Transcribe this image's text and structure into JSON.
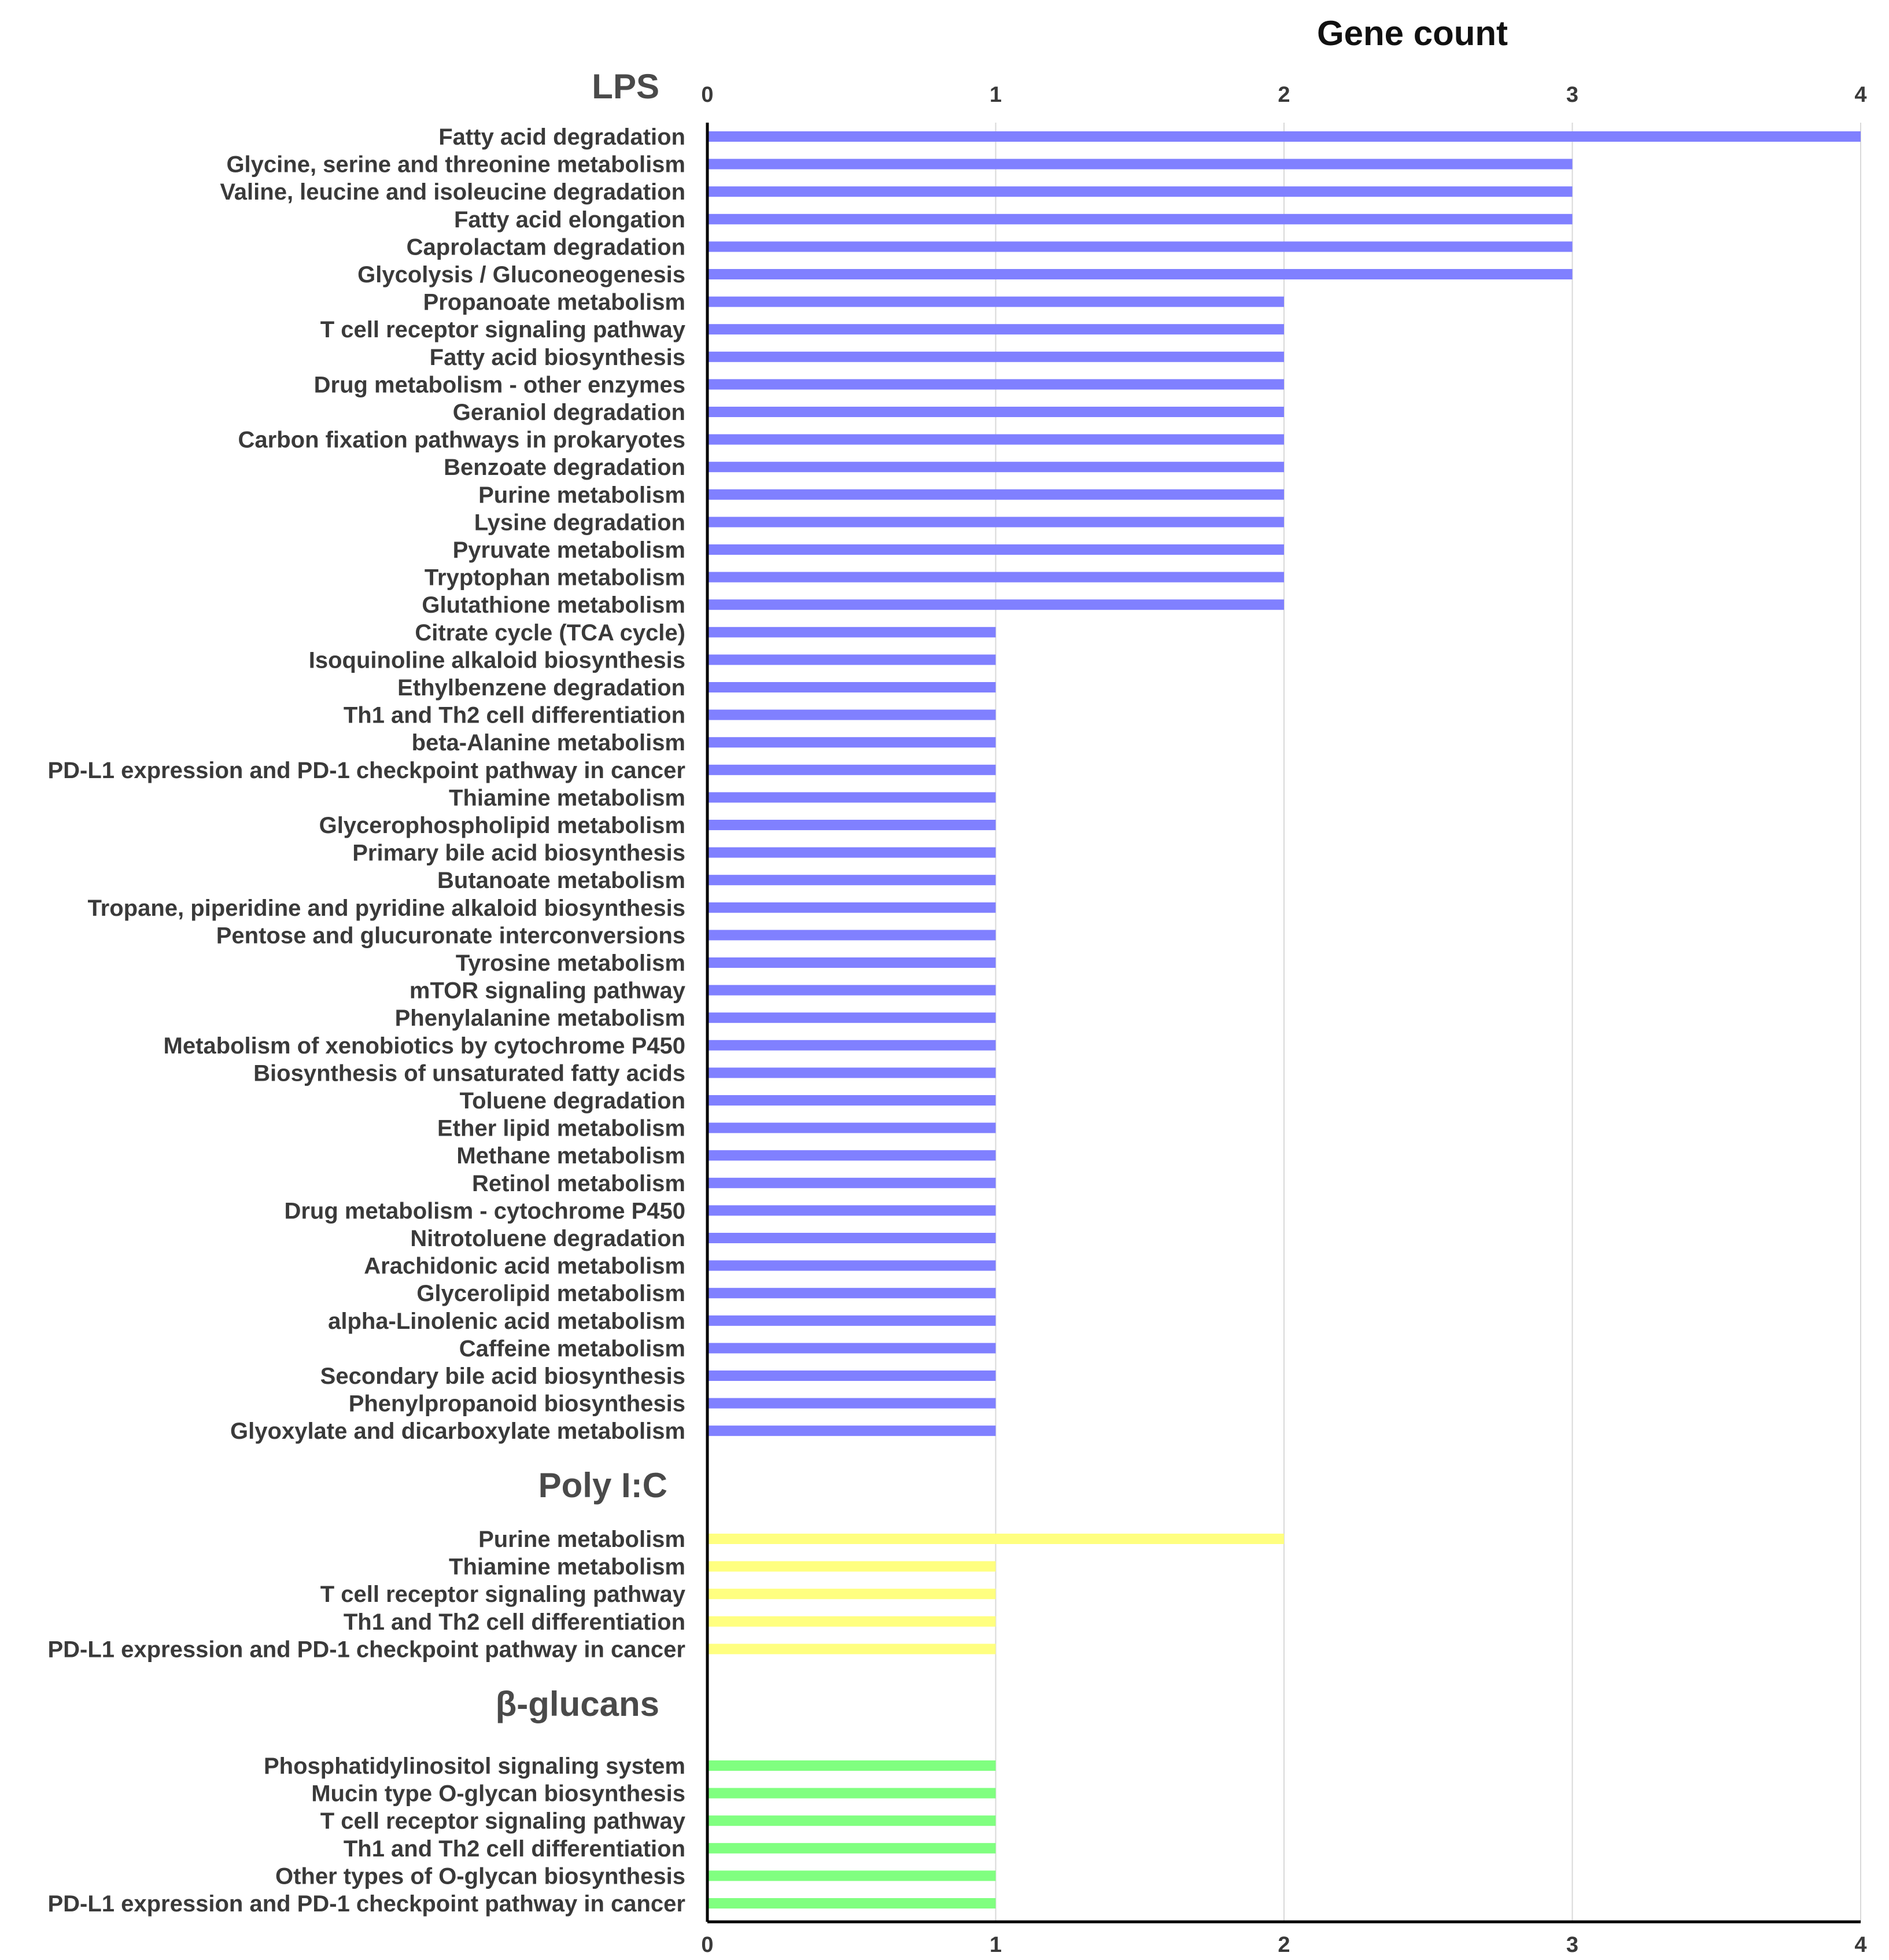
{
  "chart_data": {
    "type": "bar",
    "orientation": "horizontal",
    "xlabel": "Gene count",
    "xlim": [
      0,
      4
    ],
    "xticks": [
      "0",
      "1",
      "2",
      "3",
      "4"
    ],
    "grid": true,
    "groups": [
      {
        "name": "LPS",
        "color": "#8080ff",
        "categories": [
          "Fatty acid degradation",
          "Glycine, serine and threonine metabolism",
          "Valine, leucine and isoleucine degradation",
          "Fatty acid elongation",
          "Caprolactam degradation",
          "Glycolysis / Gluconeogenesis",
          "Propanoate metabolism",
          "T cell receptor signaling pathway",
          "Fatty acid biosynthesis",
          "Drug metabolism - other enzymes",
          "Geraniol degradation",
          "Carbon fixation pathways in prokaryotes",
          "Benzoate degradation",
          "Purine metabolism",
          "Lysine degradation",
          "Pyruvate metabolism",
          "Tryptophan metabolism",
          "Glutathione metabolism",
          "Citrate cycle (TCA cycle)",
          "Isoquinoline alkaloid biosynthesis",
          "Ethylbenzene degradation",
          "Th1 and Th2 cell differentiation",
          "beta-Alanine metabolism",
          "PD-L1 expression and PD-1 checkpoint pathway in cancer",
          "Thiamine metabolism",
          "Glycerophospholipid metabolism",
          "Primary bile acid biosynthesis",
          "Butanoate metabolism",
          "Tropane, piperidine and pyridine alkaloid biosynthesis",
          "Pentose and glucuronate interconversions",
          "Tyrosine metabolism",
          "mTOR signaling pathway",
          "Phenylalanine metabolism",
          "Metabolism of xenobiotics by cytochrome P450",
          "Biosynthesis of unsaturated fatty acids",
          "Toluene degradation",
          "Ether lipid metabolism",
          "Methane metabolism",
          "Retinol metabolism",
          "Drug metabolism - cytochrome P450",
          "Nitrotoluene degradation",
          "Arachidonic acid metabolism",
          "Glycerolipid metabolism",
          "alpha-Linolenic acid metabolism",
          "Caffeine metabolism",
          "Secondary bile acid biosynthesis",
          "Phenylpropanoid biosynthesis",
          "Glyoxylate and dicarboxylate metabolism"
        ],
        "values": [
          4,
          3,
          3,
          3,
          3,
          3,
          2,
          2,
          2,
          2,
          2,
          2,
          2,
          2,
          2,
          2,
          2,
          2,
          1,
          1,
          1,
          1,
          1,
          1,
          1,
          1,
          1,
          1,
          1,
          1,
          1,
          1,
          1,
          1,
          1,
          1,
          1,
          1,
          1,
          1,
          1,
          1,
          1,
          1,
          1,
          1,
          1,
          1
        ]
      },
      {
        "name": "Poly I:C",
        "color": "#ffff80",
        "categories": [
          "Purine metabolism",
          "Thiamine metabolism",
          "T cell receptor signaling pathway",
          "Th1 and Th2 cell differentiation",
          "PD-L1 expression and PD-1 checkpoint pathway in cancer"
        ],
        "values": [
          2,
          1,
          1,
          1,
          1
        ]
      },
      {
        "name": "β-glucans",
        "color": "#80ff80",
        "categories": [
          "Phosphatidylinositol signaling system",
          "Mucin type O-glycan biosynthesis",
          "T cell receptor signaling pathway",
          "Th1 and Th2 cell differentiation",
          "Other types of O-glycan biosynthesis",
          "PD-L1 expression and PD-1 checkpoint pathway in cancer"
        ],
        "values": [
          1,
          1,
          1,
          1,
          1,
          1
        ]
      }
    ]
  }
}
